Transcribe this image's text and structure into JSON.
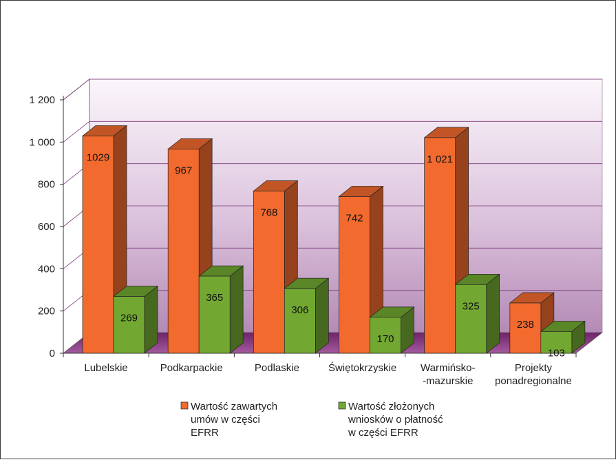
{
  "chart_data": {
    "type": "bar",
    "title": "",
    "xlabel": "",
    "ylabel": "",
    "ylim": [
      0,
      1200
    ],
    "yticks": [
      0,
      200,
      400,
      600,
      800,
      1000,
      1200
    ],
    "ytick_labels": [
      "0",
      "200",
      "400",
      "600",
      "800",
      "1 000",
      "1 200"
    ],
    "grid": true,
    "legend_position": "bottom",
    "categories": [
      [
        "Lubelskie"
      ],
      [
        "Podkarpackie"
      ],
      [
        "Podlaskie"
      ],
      [
        "Świętokrzyskie"
      ],
      [
        "Warmińsko-",
        "-mazurskie"
      ],
      [
        "Projekty",
        "ponadregionalne"
      ]
    ],
    "series": [
      {
        "name": [
          "Wartość zawartych",
          "umów w części",
          "EFRR"
        ],
        "color": "#f26a2e",
        "values": [
          1029,
          967,
          768,
          742,
          1021,
          238
        ],
        "labels": [
          "1029",
          "967",
          "768",
          "742",
          "1 021",
          "238"
        ]
      },
      {
        "name": [
          "Wartość złożonych",
          "wniosków o płatność",
          "w części EFRR"
        ],
        "color": "#72a832",
        "values": [
          269,
          365,
          306,
          170,
          325,
          103
        ],
        "labels": [
          "269",
          "365",
          "306",
          "170",
          "325",
          "103"
        ]
      }
    ]
  }
}
